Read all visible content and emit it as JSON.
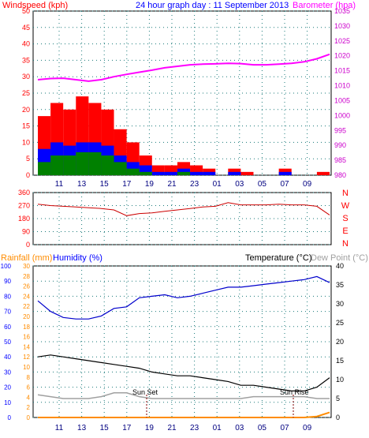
{
  "header": {
    "left_title": "Windspeed (kph)",
    "center_title": "24 hour graph day : 11 September 2013",
    "right_title": "Barometer (hpa)"
  },
  "colors": {
    "windspeed": "#ff0000",
    "wind_avg": "#0000ff",
    "wind_low": "#008000",
    "barometer": "#ff00ff",
    "direction": "#cc0000",
    "humidity": "#0000cc",
    "temperature": "#000000",
    "dewpoint": "#a0a0a0",
    "rainfall": "#ff8c00",
    "axis_red": "#ff0000",
    "axis_blue": "#0000ff",
    "axis_orange": "#ff8c00"
  },
  "panels": {
    "wind": {
      "y_left": {
        "min": 0,
        "max": 50,
        "ticks": [
          "0",
          "5",
          "10",
          "15",
          "20",
          "25",
          "30",
          "35",
          "40",
          "45",
          "50"
        ]
      },
      "y_right": {
        "min": 980,
        "max": 1035,
        "ticks": [
          "980",
          "985",
          "990",
          "995",
          "1000",
          "1005",
          "1010",
          "1015",
          "1020",
          "1025",
          "1030",
          "1035"
        ]
      }
    },
    "direction": {
      "y_left": {
        "ticks": [
          "0",
          "90",
          "180",
          "270",
          "360"
        ]
      },
      "y_right_labels": [
        "N",
        "W",
        "S",
        "E",
        "N"
      ]
    },
    "lower": {
      "title_rain": "Rainfall (mm)",
      "title_humidity": "Humidity (%)",
      "title_temp": "Temperature (°C)",
      "title_dew": "Dew Point (°C)",
      "y_rain": {
        "ticks": [
          "0",
          "2",
          "4",
          "6",
          "8",
          "10",
          "12",
          "14",
          "16",
          "18",
          "20",
          "22",
          "24",
          "26",
          "28",
          "30"
        ]
      },
      "y_humidity": {
        "ticks": [
          "0",
          "10",
          "20",
          "30",
          "40",
          "50",
          "60",
          "70",
          "80",
          "90",
          "100"
        ]
      },
      "y_temp": {
        "ticks": [
          "0",
          "5",
          "10",
          "15",
          "20",
          "25",
          "30",
          "35",
          "40"
        ]
      },
      "annotations": {
        "sunset": "Sun Set",
        "sunrise": "Sun Rise"
      }
    }
  },
  "x_ticks": [
    "11",
    "13",
    "15",
    "17",
    "19",
    "21",
    "23",
    "01",
    "03",
    "05",
    "07",
    "09"
  ],
  "chart_data": [
    {
      "type": "line",
      "title": "24 hour graph day : 11 September 2013",
      "ylabel": "Windspeed (kph)",
      "ylabel_right": "Barometer (hpa)",
      "x": [
        "10",
        "11",
        "12",
        "13",
        "14",
        "15",
        "16",
        "17",
        "18",
        "19",
        "20",
        "21",
        "22",
        "23",
        "00",
        "01",
        "02",
        "03",
        "04",
        "05",
        "06",
        "07",
        "08",
        "09"
      ],
      "ylim": [
        0,
        50
      ],
      "ylim_right": [
        980,
        1035
      ],
      "series": [
        {
          "values": [
            18,
            22,
            20,
            24,
            22,
            20,
            14,
            10,
            6,
            3,
            3,
            4,
            3,
            2,
            0,
            2,
            1,
            0,
            0,
            2,
            0,
            0,
            1,
            3
          ]
        },
        {
          "values": [
            8,
            10,
            9,
            10,
            10,
            9,
            6,
            4,
            3,
            1,
            1,
            2,
            1,
            1,
            0,
            1,
            0,
            0,
            0,
            1,
            0,
            0,
            0,
            1
          ]
        },
        {
          "values": [
            4,
            6,
            6,
            7,
            7,
            6,
            4,
            2,
            1,
            0,
            0,
            1,
            0,
            0,
            0,
            0,
            0,
            0,
            0,
            0,
            0,
            0,
            0,
            0
          ]
        },
        {
          "axis": "right",
          "values": [
            1012.0,
            1012.4,
            1012.5,
            1012.0,
            1011.5,
            1012.0,
            1013.0,
            1013.8,
            1014.5,
            1015.2,
            1016.0,
            1016.5,
            1017.0,
            1017.2,
            1017.3,
            1017.5,
            1017.4,
            1017.0,
            1017.0,
            1017.2,
            1017.5,
            1018.0,
            1019.0,
            1020.5
          ]
        }
      ]
    },
    {
      "type": "line",
      "x": [
        "10",
        "11",
        "12",
        "13",
        "14",
        "15",
        "16",
        "17",
        "18",
        "19",
        "20",
        "21",
        "22",
        "23",
        "00",
        "01",
        "02",
        "03",
        "04",
        "05",
        "06",
        "07",
        "08",
        "09"
      ],
      "ylim": [
        0,
        360
      ],
      "series": [
        {
          "values": [
            280,
            270,
            265,
            260,
            255,
            250,
            240,
            200,
            215,
            220,
            230,
            240,
            250,
            260,
            265,
            290,
            275,
            275,
            275,
            280,
            275,
            275,
            265,
            205
          ]
        }
      ]
    },
    {
      "type": "line",
      "x": [
        "10",
        "11",
        "12",
        "13",
        "14",
        "15",
        "16",
        "17",
        "18",
        "19",
        "20",
        "21",
        "22",
        "23",
        "00",
        "01",
        "02",
        "03",
        "04",
        "05",
        "06",
        "07",
        "08",
        "09"
      ],
      "ylim": [
        0,
        100
      ],
      "ylim_right": [
        0,
        40
      ],
      "series": [
        {
          "values": [
            77,
            70,
            66,
            65,
            65,
            67,
            72,
            73,
            79,
            80,
            81,
            79,
            80,
            82,
            84,
            86,
            86,
            87,
            88,
            89,
            90,
            91,
            93,
            89
          ]
        },
        {
          "axis": "right",
          "values": [
            16.0,
            16.5,
            16.0,
            15.5,
            15.0,
            14.5,
            14.0,
            13.5,
            13.0,
            12.0,
            11.5,
            11.0,
            11.0,
            10.5,
            10.0,
            9.5,
            8.5,
            8.5,
            8.0,
            7.5,
            7.0,
            7.0,
            8.0,
            10.5
          ]
        },
        {
          "axis": "right",
          "values": [
            6.0,
            5.5,
            5.0,
            5.0,
            5.0,
            5.5,
            6.5,
            6.5,
            5.5,
            5.0,
            5.0,
            5.0,
            5.0,
            5.0,
            5.0,
            5.0,
            5.0,
            5.5,
            5.5,
            5.5,
            5.5,
            5.5,
            5.0,
            5.0
          ]
        },
        {
          "axis": "rain",
          "values": [
            0,
            0,
            0,
            0,
            0,
            0,
            0,
            0,
            0,
            0,
            0,
            0,
            0,
            0,
            0,
            0,
            0,
            0,
            0,
            0,
            0,
            0,
            0.2,
            1.0
          ]
        }
      ]
    }
  ]
}
